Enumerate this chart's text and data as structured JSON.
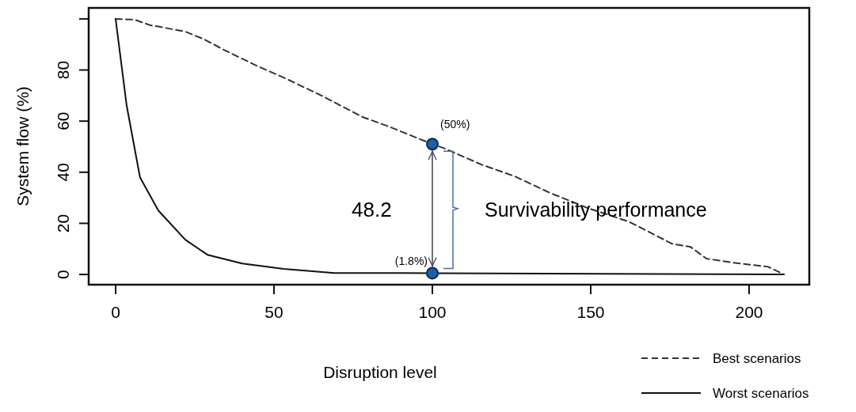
{
  "chart_data": {
    "type": "line",
    "xlabel": "Disruption level",
    "ylabel": "System flow (%)",
    "xlim": [
      -8.5,
      219
    ],
    "ylim": [
      -4,
      104.3
    ],
    "xticks": [
      0,
      50,
      100,
      150,
      200
    ],
    "yticks": [
      0,
      20,
      40,
      60,
      80,
      {
        "value": 100,
        "label": null
      }
    ],
    "legend": "bottom right",
    "series": [
      {
        "name": "Best scenarios",
        "color": "#333333",
        "line_style": "dashed",
        "x": [
          0,
          6,
          11,
          13.5,
          22,
          28,
          34,
          44,
          54,
          65,
          78,
          86,
          94,
          100,
          103.5,
          115.5,
          126,
          137,
          149,
          162,
          175.7,
          181.5,
          186.5,
          195,
          206,
          211
        ],
        "values": [
          100,
          99.7,
          97.5,
          97,
          95,
          92,
          88,
          82,
          76.5,
          70,
          61.6,
          58,
          54,
          51,
          49.5,
          43,
          38.4,
          32,
          26,
          20.7,
          12,
          10.8,
          6.2,
          4.6,
          3,
          0
        ]
      },
      {
        "name": "Worst scenarios",
        "color": "#111111",
        "line_style": "solid",
        "x": [
          0,
          3.5,
          7.7,
          13.5,
          22,
          29,
          40,
          53,
          69,
          100,
          211
        ],
        "values": [
          100,
          66,
          38,
          25,
          13.6,
          7.7,
          4.3,
          2.2,
          0.6,
          0.5,
          0
        ]
      },
      {
        "type": "scatter",
        "color": "#1f5fa8",
        "marker": "circle",
        "x": [
          100,
          100
        ],
        "values": [
          51,
          0.5
        ]
      }
    ],
    "annotations": [
      {
        "text": "(50%)",
        "x": 100,
        "y": 51
      },
      {
        "text": "(1.8%)",
        "x": 100,
        "y": 0.5
      },
      "48.2",
      "Survivability performance"
    ]
  }
}
